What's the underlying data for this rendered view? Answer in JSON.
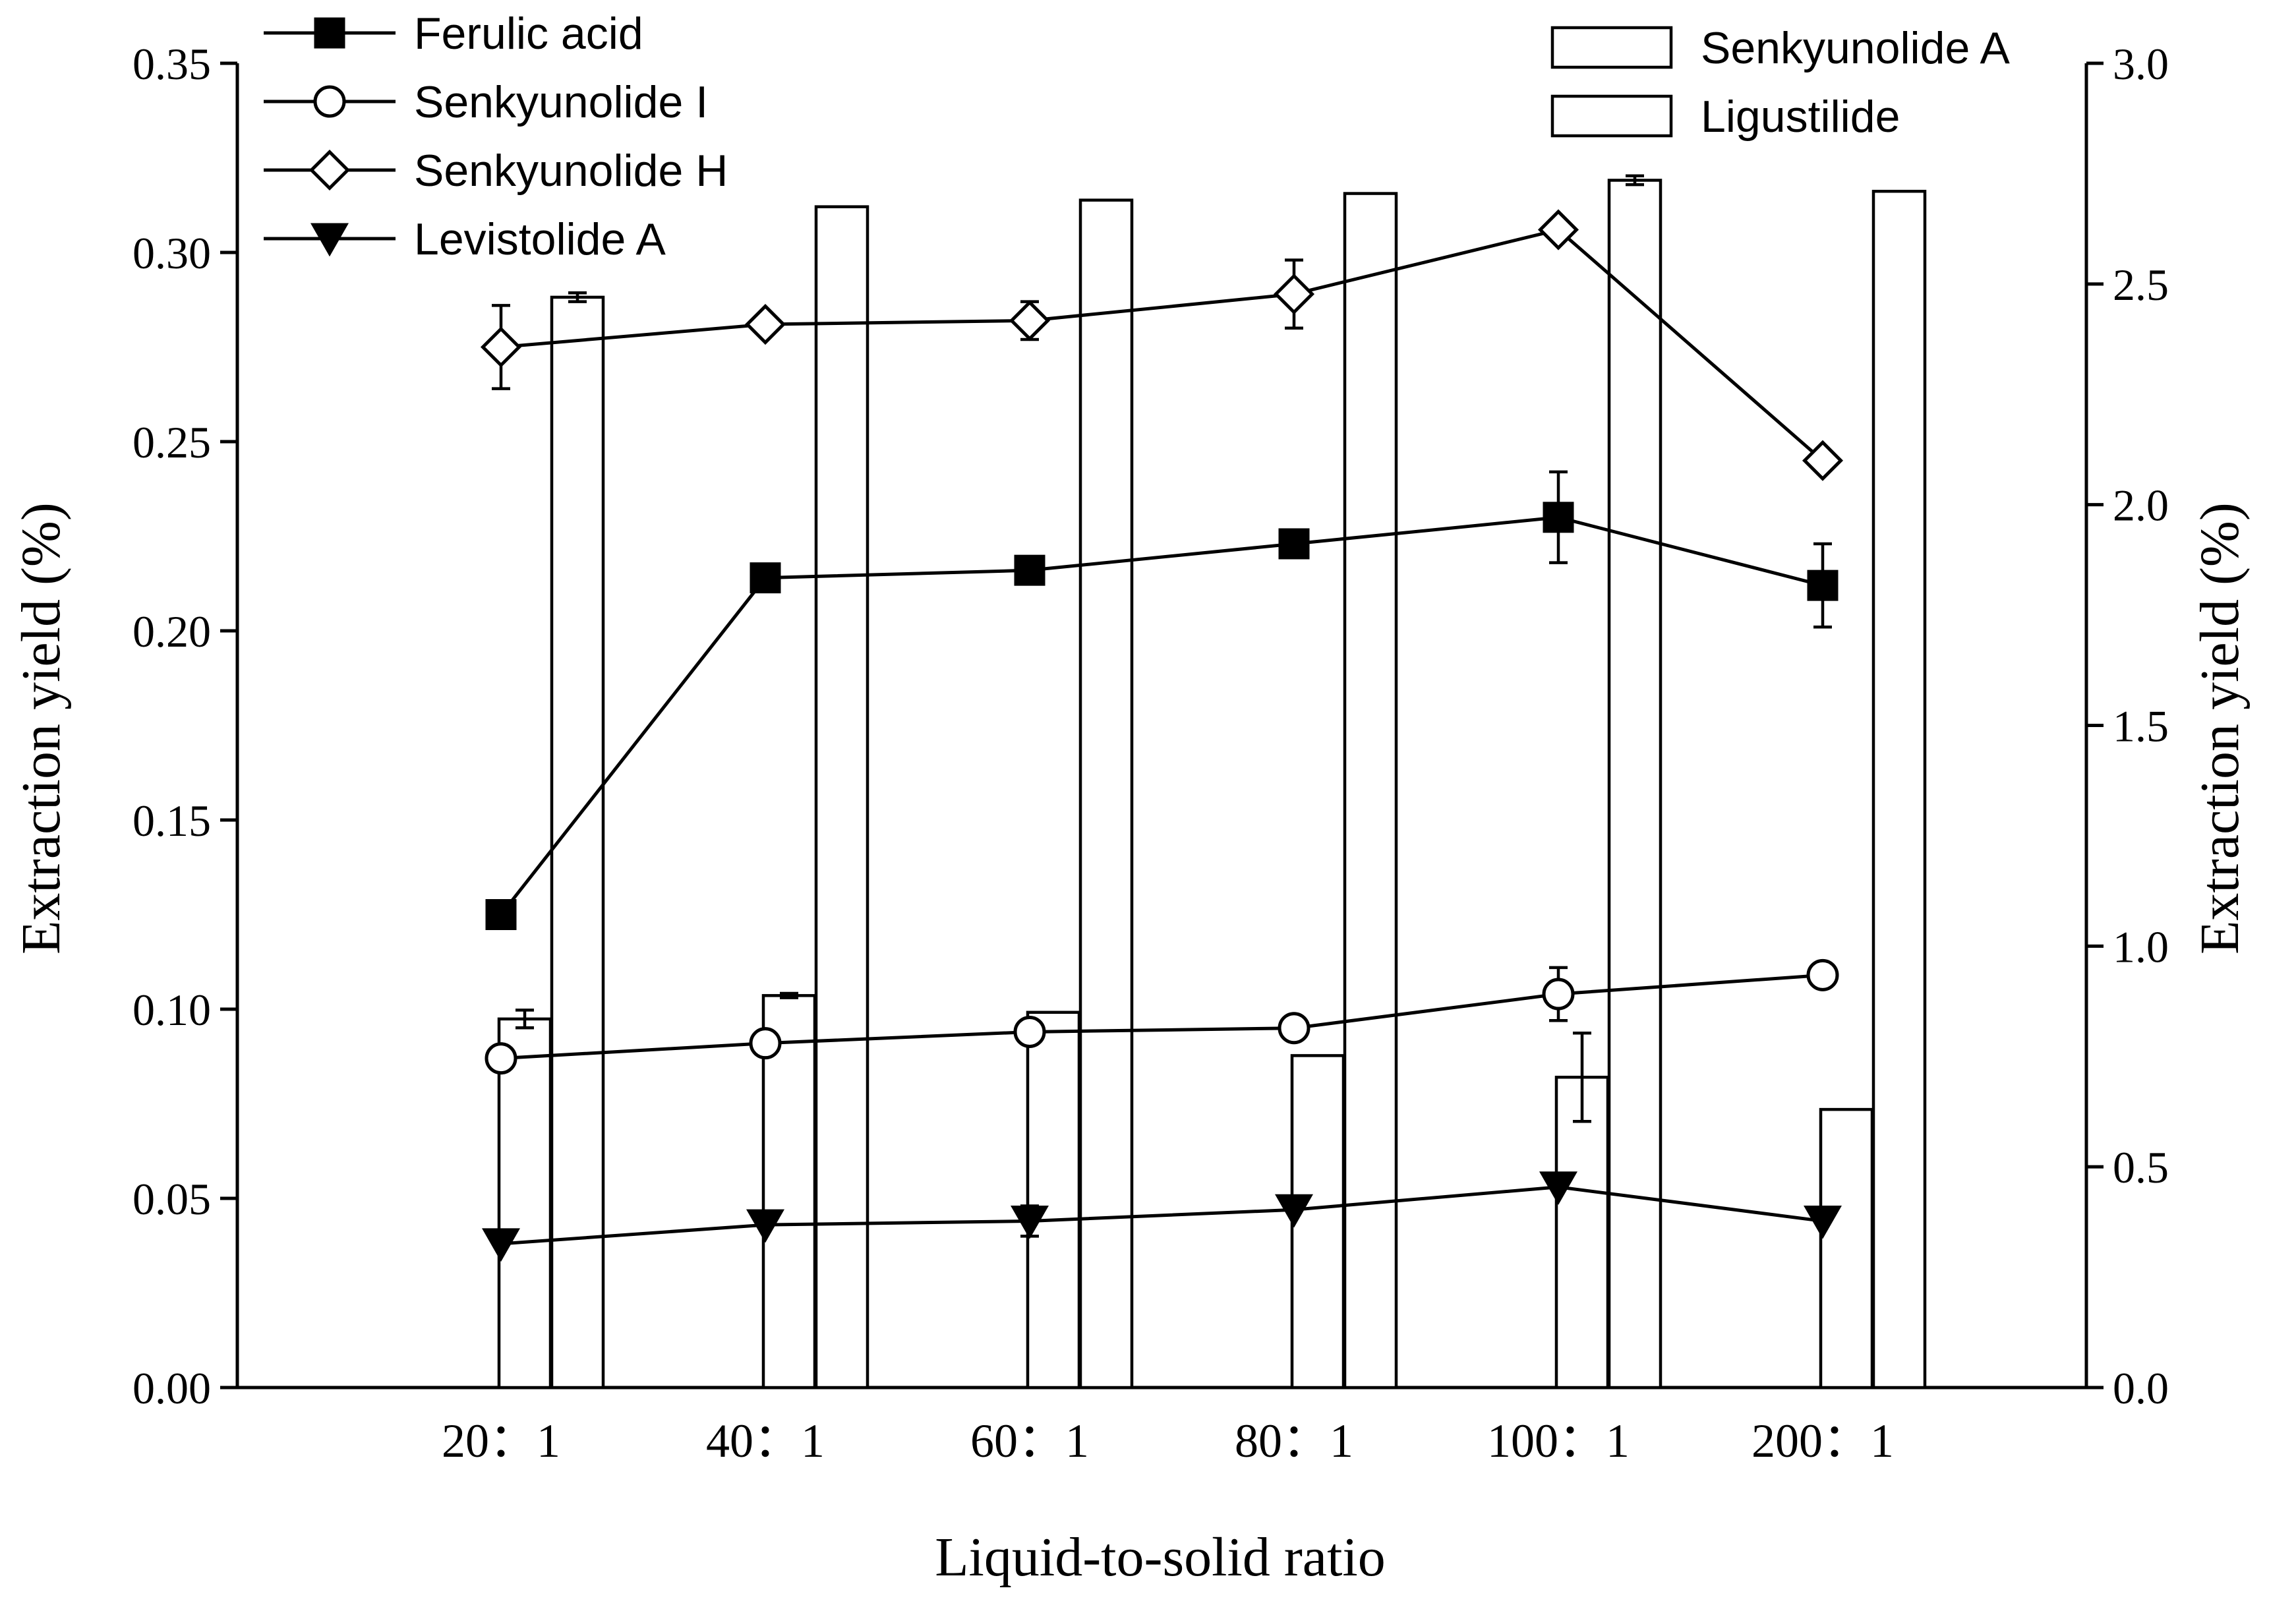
{
  "chart_data": {
    "type": "bar",
    "categories": [
      "20：1",
      "40：1",
      "60：1",
      "80：1",
      "100：1",
      "200：1"
    ],
    "xlabel": "Liquid-to-solid ratio",
    "ylabel_left": "Extraction yield (%)",
    "ylabel_right": "Extraction yield (%)",
    "ylim_left": [
      0,
      0.35
    ],
    "ylim_right": [
      0,
      3.0
    ],
    "yticks_left": [
      "0.00",
      "0.05",
      "0.10",
      "0.15",
      "0.20",
      "0.25",
      "0.30",
      "0.35"
    ],
    "yticks_right": [
      "0.0",
      "0.5",
      "1.0",
      "1.5",
      "2.0",
      "2.5",
      "3.0"
    ],
    "grid": false,
    "bar_series": [
      {
        "name": "Senkyunolide A",
        "axis": "right",
        "values": [
          0.835,
          0.888,
          0.85,
          0.752,
          0.703,
          0.63
        ],
        "errors": [
          0.02,
          0.005,
          0.0,
          0.0,
          0.1,
          0.0
        ]
      },
      {
        "name": "Ligustilide",
        "axis": "right",
        "values": [
          2.47,
          2.675,
          2.69,
          2.705,
          2.735,
          2.71
        ],
        "errors": [
          0.01,
          0.0,
          0.0,
          0.0,
          0.01,
          0.0
        ]
      }
    ],
    "line_series": [
      {
        "name": "Ferulic acid",
        "axis": "left",
        "marker": "square-filled",
        "values": [
          0.125,
          0.214,
          0.216,
          0.223,
          0.23,
          0.212
        ],
        "errors": [
          0.0,
          0.0,
          0.0,
          0.0,
          0.012,
          0.011
        ]
      },
      {
        "name": "Senkyunolide I",
        "axis": "left",
        "marker": "circle-open",
        "values": [
          0.087,
          0.091,
          0.094,
          0.095,
          0.104,
          0.109
        ],
        "errors": [
          0.0,
          0.0,
          0.0,
          0.0,
          0.007,
          0.0
        ]
      },
      {
        "name": "Senkyunolide H",
        "axis": "left",
        "marker": "diamond-open",
        "values": [
          0.275,
          0.281,
          0.282,
          0.289,
          0.306,
          0.245
        ],
        "errors": [
          0.011,
          0.0,
          0.005,
          0.009,
          0.0,
          0.0
        ]
      },
      {
        "name": "Levistolide A",
        "axis": "left",
        "marker": "triangle-down-filled",
        "values": [
          0.038,
          0.043,
          0.044,
          0.047,
          0.053,
          0.044
        ],
        "errors": [
          0.0,
          0.0,
          0.004,
          0.0,
          0.0,
          0.0
        ]
      }
    ],
    "legend_left_position": "top-left",
    "legend_right_position": "top-right"
  }
}
